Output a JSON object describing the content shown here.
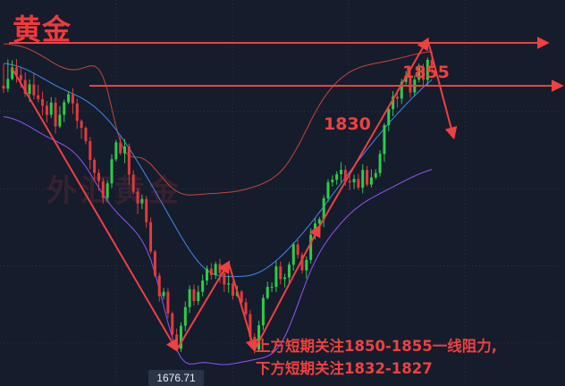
{
  "title": "黄金",
  "watermark": "外汇黄金",
  "levels": [
    {
      "label": "1855",
      "value": 1855
    },
    {
      "label": "1830",
      "value": 1830
    }
  ],
  "annotation": {
    "line1": "上方短期关注1850-1855一线阻力,",
    "line2": "下方短期关注1832-1827"
  },
  "low_price_tag": "1676.71",
  "colors": {
    "background": "#151c2c",
    "bull": "#2ecc4a",
    "bear": "#e23b3b",
    "annotation": "#f04040",
    "bb_upper": "#b8413a",
    "bb_mid": "#3f7fe0",
    "bb_lower": "#8a4fe6"
  },
  "chart_data": {
    "type": "candlestick",
    "title": "黄金",
    "ylim": [
      1655,
      1880
    ],
    "grid": true,
    "candles": [
      [
        1830.0,
        1828.3,
        1842.6,
        1825.8
      ],
      [
        1828.3,
        1834.0,
        1845.4,
        1826.3
      ],
      [
        1834.0,
        1840.7,
        1844.9,
        1833.2
      ],
      [
        1840.7,
        1836.2,
        1845.6,
        1831.8
      ],
      [
        1836.2,
        1833.4,
        1840.4,
        1828.8
      ],
      [
        1833.4,
        1825.3,
        1837.9,
        1823.5
      ],
      [
        1825.3,
        1830.8,
        1833.8,
        1820.7
      ],
      [
        1830.8,
        1824.4,
        1837.2,
        1822.0
      ],
      [
        1824.4,
        1822.2,
        1830.5,
        1820.3
      ],
      [
        1822.2,
        1818.4,
        1826.6,
        1812.7
      ],
      [
        1818.4,
        1813.1,
        1821.0,
        1808.6
      ],
      [
        1813.1,
        1820.2,
        1823.4,
        1811.3
      ],
      [
        1820.2,
        1806.3,
        1823.2,
        1802.2
      ],
      [
        1806.3,
        1813.1,
        1818.1,
        1805.3
      ],
      [
        1813.1,
        1820.4,
        1822.0,
        1808.8
      ],
      [
        1820.4,
        1825.1,
        1826.9,
        1819.3
      ],
      [
        1825.1,
        1819.7,
        1828.7,
        1813.5
      ],
      [
        1819.7,
        1809.5,
        1822.6,
        1804.9
      ],
      [
        1809.5,
        1805.5,
        1810.5,
        1799.2
      ],
      [
        1805.5,
        1797.7,
        1806.4,
        1795.9
      ],
      [
        1797.7,
        1786.8,
        1800.1,
        1781.4
      ],
      [
        1786.8,
        1779.2,
        1788.0,
        1774.4
      ],
      [
        1779.2,
        1774.4,
        1781.4,
        1768.9
      ],
      [
        1774.4,
        1764.6,
        1776.2,
        1761.4
      ],
      [
        1764.6,
        1773.1,
        1775.0,
        1762.2
      ],
      [
        1773.1,
        1787.1,
        1790.0,
        1770.3
      ],
      [
        1787.1,
        1797.0,
        1798.4,
        1785.8
      ],
      [
        1797.0,
        1790.6,
        1800.2,
        1789.6
      ],
      [
        1790.6,
        1794.6,
        1799.0,
        1784.9
      ],
      [
        1794.6,
        1778.2,
        1796.3,
        1772.4
      ],
      [
        1778.2,
        1768.3,
        1780.8,
        1766.7
      ],
      [
        1768.3,
        1761.4,
        1770.4,
        1755.3
      ],
      [
        1761.4,
        1764.0,
        1766.6,
        1758.1
      ],
      [
        1764.0,
        1750.5,
        1765.8,
        1747.3
      ],
      [
        1750.5,
        1733.4,
        1753.2,
        1732.1
      ],
      [
        1733.4,
        1719.3,
        1734.4,
        1718.3
      ],
      [
        1719.3,
        1707.4,
        1720.9,
        1704.2
      ],
      [
        1707.4,
        1709.9,
        1712.2,
        1705.4
      ],
      [
        1709.9,
        1697.3,
        1712.1,
        1694.6
      ],
      [
        1697.3,
        1685.0,
        1698.4,
        1683.7
      ],
      [
        1685.0,
        1676.7,
        1688.5,
        1676.7
      ],
      [
        1676.7,
        1690.1,
        1692.2,
        1674.9
      ],
      [
        1690.1,
        1701.0,
        1704.3,
        1687.0
      ],
      [
        1701.0,
        1711.4,
        1713.7,
        1697.6
      ],
      [
        1711.4,
        1704.5,
        1714.2,
        1701.9
      ],
      [
        1704.5,
        1709.9,
        1713.6,
        1702.3
      ],
      [
        1709.9,
        1716.5,
        1720.0,
        1707.2
      ],
      [
        1716.5,
        1723.4,
        1725.2,
        1713.8
      ],
      [
        1723.4,
        1719.6,
        1726.6,
        1716.9
      ],
      [
        1719.6,
        1726.1,
        1727.4,
        1717.4
      ],
      [
        1726.1,
        1720.9,
        1729.2,
        1715.0
      ],
      [
        1720.9,
        1714.1,
        1722.2,
        1709.7
      ],
      [
        1714.1,
        1714.8,
        1719.9,
        1709.4
      ],
      [
        1714.8,
        1707.6,
        1716.3,
        1705.4
      ],
      [
        1707.6,
        1710.0,
        1713.5,
        1706.8
      ],
      [
        1710.0,
        1703.8,
        1711.0,
        1701.1
      ],
      [
        1703.8,
        1696.9,
        1706.1,
        1695.9
      ],
      [
        1696.9,
        1683.7,
        1699.4,
        1681.4
      ],
      [
        1683.7,
        1676.2,
        1685.7,
        1673.8
      ],
      [
        1676.2,
        1690.3,
        1693.1,
        1675.2
      ],
      [
        1690.3,
        1706.3,
        1708.3,
        1687.5
      ],
      [
        1706.3,
        1712.8,
        1715.8,
        1705.4
      ],
      [
        1712.8,
        1712.8,
        1715.4,
        1709.8
      ],
      [
        1712.8,
        1724.7,
        1727.6,
        1709.7
      ],
      [
        1724.7,
        1717.3,
        1727.6,
        1714.2
      ],
      [
        1717.3,
        1718.3,
        1720.4,
        1712.5
      ],
      [
        1718.3,
        1725.7,
        1727.3,
        1714.8
      ],
      [
        1725.7,
        1737.6,
        1738.8,
        1722.2
      ],
      [
        1737.6,
        1731.4,
        1740.1,
        1729.4
      ],
      [
        1731.4,
        1722.4,
        1733.0,
        1720.5
      ],
      [
        1722.4,
        1728.5,
        1730.5,
        1717.7
      ],
      [
        1728.5,
        1743.2,
        1747.0,
        1726.4
      ],
      [
        1743.2,
        1749.7,
        1752.6,
        1740.4
      ],
      [
        1749.7,
        1752.2,
        1753.6,
        1748.4
      ],
      [
        1752.2,
        1764.4,
        1766.1,
        1747.6
      ],
      [
        1764.4,
        1773.8,
        1775.6,
        1762.3
      ],
      [
        1773.8,
        1775.2,
        1777.7,
        1771.3
      ],
      [
        1775.2,
        1778.5,
        1780.2,
        1772.3
      ],
      [
        1778.5,
        1781.0,
        1785.5,
        1773.6
      ],
      [
        1781.0,
        1774.6,
        1783.5,
        1771.7
      ],
      [
        1774.6,
        1773.7,
        1779.0,
        1769.3
      ],
      [
        1773.7,
        1775.7,
        1778.3,
        1769.8
      ],
      [
        1775.7,
        1770.6,
        1778.6,
        1769.1
      ],
      [
        1770.6,
        1780.9,
        1784.3,
        1767.3
      ],
      [
        1780.9,
        1772.4,
        1783.3,
        1771.3
      ],
      [
        1772.4,
        1776.6,
        1781.3,
        1770.7
      ],
      [
        1776.6,
        1779.1,
        1781.4,
        1775.4
      ],
      [
        1779.1,
        1790.3,
        1792.4,
        1777.1
      ],
      [
        1790.3,
        1807.1,
        1808.3,
        1785.7
      ],
      [
        1807.1,
        1816.4,
        1818.1,
        1803.5
      ],
      [
        1816.4,
        1823.6,
        1826.9,
        1812.3
      ],
      [
        1823.6,
        1822.5,
        1827.6,
        1817.2
      ],
      [
        1822.5,
        1832.3,
        1834.0,
        1819.5
      ],
      [
        1832.3,
        1835.6,
        1838.5,
        1830.7
      ],
      [
        1835.6,
        1826.1,
        1839.2,
        1822.9
      ],
      [
        1826.1,
        1833.6,
        1836.0,
        1824.1
      ],
      [
        1833.6,
        1840.4,
        1843.0,
        1832.0
      ],
      [
        1840.4,
        1833.5,
        1842.8,
        1829.3
      ],
      [
        1833.5,
        1845.1,
        1846.5,
        1829.7
      ],
      [
        1845.1,
        1841.8,
        1849.8,
        1837.0
      ]
    ],
    "bollinger": {
      "upper": [
        1854.5,
        1854.3,
        1854.0,
        1853.6,
        1853.0,
        1852.2,
        1851.2,
        1850.0,
        1848.7,
        1847.2,
        1845.7,
        1844.1,
        1842.6,
        1841.3,
        1840.3,
        1839.6,
        1839.3,
        1839.5,
        1840.1,
        1840.9,
        1841.6,
        1841.5,
        1839.7,
        1835.2,
        1827.3,
        1816.8,
        1806.1,
        1797.5,
        1791.9,
        1789.2,
        1788.5,
        1788.4,
        1787.8,
        1786.4,
        1784.3,
        1781.5,
        1778.5,
        1775.5,
        1772.7,
        1770.3,
        1768.5,
        1767.3,
        1766.6,
        1766.3,
        1766.4,
        1766.6,
        1766.8,
        1767.0,
        1767.2,
        1767.3,
        1767.5,
        1767.7,
        1767.9,
        1768.2,
        1768.6,
        1769.1,
        1769.7,
        1770.4,
        1771.2,
        1772.1,
        1773.1,
        1774.3,
        1775.8,
        1777.6,
        1779.9,
        1782.7,
        1786.1,
        1790.2,
        1794.7,
        1799.5,
        1804.5,
        1809.5,
        1814.3,
        1818.8,
        1822.8,
        1826.3,
        1829.4,
        1832.1,
        1834.4,
        1836.3,
        1838.0,
        1839.3,
        1840.4,
        1841.3,
        1842.0,
        1842.6,
        1843.1,
        1843.6,
        1844.1,
        1844.6,
        1845.2,
        1845.8,
        1846.4,
        1847.0,
        1847.7,
        1848.3,
        1848.8,
        1849.3,
        1849.7,
        1850.0
      ],
      "mid": [
        1843.0,
        1842.7,
        1842.2,
        1841.6,
        1840.8,
        1839.8,
        1838.6,
        1837.3,
        1835.9,
        1834.5,
        1833.0,
        1831.6,
        1830.2,
        1828.9,
        1827.7,
        1826.5,
        1825.4,
        1824.2,
        1822.9,
        1821.4,
        1819.7,
        1817.8,
        1815.6,
        1813.2,
        1810.5,
        1807.6,
        1804.4,
        1801.0,
        1797.4,
        1793.6,
        1789.7,
        1785.6,
        1781.5,
        1777.3,
        1773.0,
        1768.7,
        1764.3,
        1759.9,
        1755.4,
        1751.0,
        1746.6,
        1742.3,
        1738.1,
        1734.2,
        1730.6,
        1727.4,
        1724.7,
        1722.5,
        1720.9,
        1719.8,
        1719.2,
        1718.9,
        1718.8,
        1718.8,
        1718.8,
        1718.9,
        1719.1,
        1719.5,
        1720.2,
        1721.2,
        1722.5,
        1724.1,
        1726.0,
        1728.0,
        1730.3,
        1732.7,
        1735.3,
        1738.0,
        1740.8,
        1743.7,
        1746.7,
        1749.8,
        1753.0,
        1756.3,
        1759.6,
        1763.0,
        1766.4,
        1769.8,
        1773.2,
        1776.6,
        1779.9,
        1783.2,
        1786.5,
        1789.7,
        1792.9,
        1796.0,
        1799.1,
        1802.1,
        1805.1,
        1808.0,
        1810.9,
        1813.7,
        1816.4,
        1819.1,
        1821.7,
        1824.2,
        1826.7,
        1829.1,
        1831.4,
        1833.6
      ],
      "lower": [
        1812.0,
        1811.6,
        1810.9,
        1810.0,
        1808.9,
        1807.6,
        1806.2,
        1804.7,
        1803.2,
        1801.7,
        1800.3,
        1799.1,
        1797.9,
        1796.6,
        1795.3,
        1793.7,
        1791.7,
        1789.3,
        1786.3,
        1782.8,
        1778.9,
        1774.8,
        1770.6,
        1766.6,
        1762.9,
        1759.6,
        1756.7,
        1754.0,
        1751.5,
        1749.0,
        1746.4,
        1743.4,
        1739.7,
        1734.9,
        1728.7,
        1720.8,
        1711.6,
        1701.6,
        1691.9,
        1683.3,
        1676.3,
        1671.5,
        1668.8,
        1667.8,
        1667.9,
        1668.4,
        1668.7,
        1668.6,
        1668.3,
        1667.9,
        1667.6,
        1667.5,
        1667.6,
        1668.0,
        1668.4,
        1668.9,
        1669.4,
        1669.9,
        1670.4,
        1670.9,
        1671.5,
        1672.4,
        1673.8,
        1676.1,
        1679.4,
        1683.8,
        1689.3,
        1695.6,
        1702.4,
        1709.4,
        1716.1,
        1722.3,
        1727.8,
        1732.6,
        1736.8,
        1740.5,
        1743.9,
        1747.0,
        1749.9,
        1752.7,
        1755.2,
        1757.5,
        1759.5,
        1761.4,
        1763.0,
        1764.5,
        1765.9,
        1767.2,
        1768.5,
        1769.8,
        1771.1,
        1772.4,
        1773.7,
        1775.0,
        1776.2,
        1777.4,
        1778.5,
        1779.5,
        1780.4,
        1781.2
      ]
    },
    "horizontal_levels": [
      1855,
      1830
    ],
    "trend_path": [
      [
        2,
        1840
      ],
      [
        40,
        1676
      ],
      [
        52,
        1727
      ],
      [
        58,
        1676
      ],
      [
        73,
        1748
      ],
      [
        98,
        1857
      ],
      [
        104,
        1800
      ]
    ]
  }
}
